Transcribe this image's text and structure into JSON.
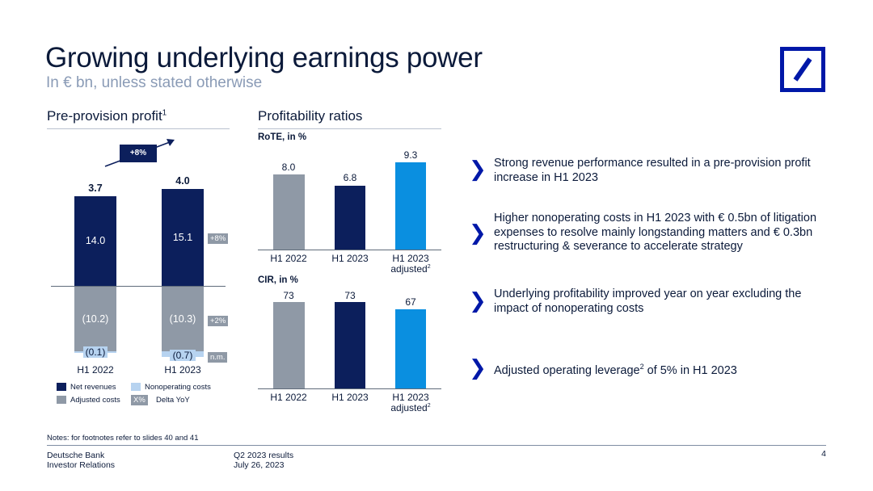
{
  "header": {
    "title": "Growing underlying earnings power",
    "subtitle": "In € bn, unless stated otherwise"
  },
  "ppp": {
    "title": "Pre-provision profit",
    "title_sup": "1",
    "growth_badge": "+8%",
    "categories": [
      "H1 2022",
      "H1 2023"
    ],
    "totals": [
      "3.7",
      "4.0"
    ],
    "net_revenues": [
      "14.0",
      "15.1"
    ],
    "adjusted_costs": [
      "(10.2)",
      "(10.3)"
    ],
    "nonoperating_costs": [
      "(0.1)",
      "(0.7)"
    ],
    "deltas": [
      "+8%",
      "+2%",
      "n.m."
    ],
    "legend": {
      "net_revenues": "Net revenues",
      "nonoperating_costs": "Nonoperating costs",
      "adjusted_costs": "Adjusted costs",
      "delta_badge": "X%",
      "delta_label": "Delta YoY"
    }
  },
  "ratios": {
    "title": "Profitability ratios",
    "rote_label": "RoTE, in %",
    "cir_label": "CIR, in %",
    "cat1": "H1 2022",
    "cat2": "H1 2023",
    "cat3_line1": "H1 2023",
    "cat3_line2": "adjusted",
    "cat3_sup": "2",
    "rote_values": [
      "8.0",
      "6.8",
      "9.3"
    ],
    "cir_values": [
      "73",
      "73",
      "67"
    ]
  },
  "chart_data": [
    {
      "type": "bar",
      "title": "Pre-provision profit",
      "categories": [
        "H1 2022",
        "H1 2023"
      ],
      "series": [
        {
          "name": "Net revenues",
          "values": [
            14.0,
            15.1
          ]
        },
        {
          "name": "Adjusted costs",
          "values": [
            -10.2,
            -10.3
          ]
        },
        {
          "name": "Nonoperating costs",
          "values": [
            -0.1,
            -0.7
          ]
        }
      ],
      "totals": [
        3.7,
        4.0
      ]
    },
    {
      "type": "bar",
      "title": "RoTE, in %",
      "categories": [
        "H1 2022",
        "H1 2023",
        "H1 2023 adjusted"
      ],
      "values": [
        8.0,
        6.8,
        9.3
      ]
    },
    {
      "type": "bar",
      "title": "CIR, in %",
      "categories": [
        "H1 2022",
        "H1 2023",
        "H1 2023 adjusted"
      ],
      "values": [
        73,
        73,
        67
      ]
    }
  ],
  "bullets": [
    {
      "text": "Strong revenue performance resulted in a pre-provision profit increase in H1 2023"
    },
    {
      "text": "Higher nonoperating costs in H1 2023 with € 0.5bn of litigation expenses to resolve mainly longstanding matters and € 0.3bn restructuring & severance to accelerate strategy"
    },
    {
      "text": "Underlying profitability improved year on year excluding the impact of nonoperating costs"
    },
    {
      "text_main": "Adjusted operating leverage",
      "text_sup": "2",
      "text_tail": " of 5% in H1 2023"
    }
  ],
  "bullet_glyph": "❯",
  "footer": {
    "notes": "Notes: for footnotes refer to slides 40 and 41",
    "company": "Deutsche Bank",
    "dept": "Investor Relations",
    "doc": "Q2 2023 results",
    "date": "July 26, 2023",
    "page": "4"
  },
  "colors": {
    "navy": "#0c1f5c",
    "gray": "#8f99a6",
    "light_blue": "#b7d3f0",
    "bright_blue": "#0a8fe0",
    "logo_blue": "#0018a8"
  }
}
